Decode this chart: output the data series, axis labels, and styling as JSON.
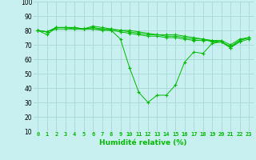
{
  "xlabel": "Humidité relative (%)",
  "background_color": "#c8f0f0",
  "grid_color": "#a8d8d8",
  "line_color": "#00bb00",
  "marker": "+",
  "xlim": [
    -0.5,
    23.5
  ],
  "ylim": [
    10,
    100
  ],
  "yticks": [
    10,
    20,
    30,
    40,
    50,
    60,
    70,
    80,
    90,
    100
  ],
  "xticks": [
    0,
    1,
    2,
    3,
    4,
    5,
    6,
    7,
    8,
    9,
    10,
    11,
    12,
    13,
    14,
    15,
    16,
    17,
    18,
    19,
    20,
    21,
    22,
    23
  ],
  "series": [
    [
      80,
      77,
      82,
      82,
      81,
      81,
      81,
      81,
      80,
      74,
      54,
      37,
      30,
      35,
      35,
      42,
      58,
      65,
      64,
      71,
      72,
      68,
      72,
      74
    ],
    [
      80,
      79,
      81,
      81,
      81,
      81,
      81,
      80,
      80,
      79,
      78,
      77,
      76,
      76,
      75,
      75,
      74,
      73,
      73,
      73,
      73,
      70,
      74,
      75
    ],
    [
      80,
      79,
      82,
      82,
      82,
      81,
      82,
      81,
      81,
      80,
      79,
      78,
      77,
      77,
      76,
      76,
      75,
      74,
      74,
      72,
      72,
      68,
      73,
      75
    ],
    [
      80,
      79,
      82,
      82,
      82,
      81,
      83,
      82,
      81,
      80,
      80,
      79,
      78,
      77,
      77,
      77,
      76,
      75,
      74,
      73,
      72,
      69,
      73,
      75
    ]
  ]
}
